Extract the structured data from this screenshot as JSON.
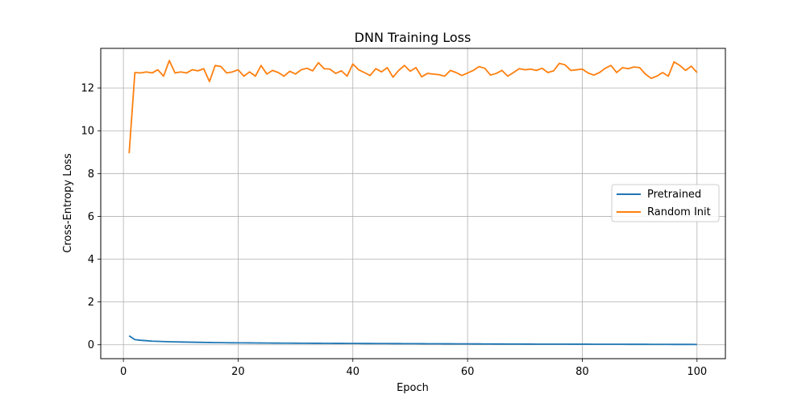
{
  "chart_data": {
    "type": "line",
    "title": "DNN Training Loss",
    "xlabel": "Epoch",
    "ylabel": "Cross-Entropy Loss",
    "xlim": [
      -3.95,
      104.95
    ],
    "ylim": [
      -0.65,
      13.85
    ],
    "xticks": [
      0,
      20,
      40,
      60,
      80,
      100
    ],
    "yticks": [
      0,
      2,
      4,
      6,
      8,
      10,
      12
    ],
    "grid": true,
    "legend_position": "center-right",
    "x": [
      1,
      2,
      3,
      4,
      5,
      6,
      7,
      8,
      9,
      10,
      11,
      12,
      13,
      14,
      15,
      16,
      17,
      18,
      19,
      20,
      21,
      22,
      23,
      24,
      25,
      26,
      27,
      28,
      29,
      30,
      31,
      32,
      33,
      34,
      35,
      36,
      37,
      38,
      39,
      40,
      41,
      42,
      43,
      44,
      45,
      46,
      47,
      48,
      49,
      50,
      51,
      52,
      53,
      54,
      55,
      56,
      57,
      58,
      59,
      60,
      61,
      62,
      63,
      64,
      65,
      66,
      67,
      68,
      69,
      70,
      71,
      72,
      73,
      74,
      75,
      76,
      77,
      78,
      79,
      80,
      81,
      82,
      83,
      84,
      85,
      86,
      87,
      88,
      89,
      90,
      91,
      92,
      93,
      94,
      95,
      96,
      97,
      98,
      99,
      100
    ],
    "series": [
      {
        "name": "Pretrained",
        "color": "#1f77b4",
        "values": [
          0.42,
          0.24,
          0.21,
          0.19,
          0.17,
          0.16,
          0.15,
          0.14,
          0.135,
          0.13,
          0.125,
          0.12,
          0.115,
          0.11,
          0.105,
          0.1,
          0.098,
          0.095,
          0.092,
          0.09,
          0.088,
          0.086,
          0.084,
          0.082,
          0.08,
          0.078,
          0.077,
          0.075,
          0.074,
          0.072,
          0.071,
          0.07,
          0.068,
          0.067,
          0.066,
          0.065,
          0.064,
          0.063,
          0.062,
          0.061,
          0.06,
          0.059,
          0.058,
          0.057,
          0.056,
          0.055,
          0.054,
          0.053,
          0.052,
          0.051,
          0.05,
          0.049,
          0.048,
          0.047,
          0.046,
          0.045,
          0.044,
          0.043,
          0.042,
          0.041,
          0.04,
          0.039,
          0.038,
          0.037,
          0.036,
          0.035,
          0.034,
          0.033,
          0.032,
          0.031,
          0.03,
          0.029,
          0.029,
          0.028,
          0.028,
          0.027,
          0.027,
          0.026,
          0.026,
          0.025,
          0.025,
          0.024,
          0.024,
          0.023,
          0.023,
          0.022,
          0.022,
          0.021,
          0.021,
          0.02,
          0.02,
          0.019,
          0.019,
          0.018,
          0.018,
          0.017,
          0.017,
          0.016,
          0.016,
          0.015
        ]
      },
      {
        "name": "Random Init",
        "color": "#ff7f0e",
        "values": [
          8.95,
          12.72,
          12.7,
          12.75,
          12.7,
          12.85,
          12.55,
          13.28,
          12.7,
          12.75,
          12.7,
          12.85,
          12.8,
          12.9,
          12.3,
          13.05,
          13.0,
          12.7,
          12.75,
          12.85,
          12.55,
          12.75,
          12.55,
          13.05,
          12.65,
          12.82,
          12.72,
          12.55,
          12.78,
          12.65,
          12.85,
          12.92,
          12.8,
          13.18,
          12.9,
          12.88,
          12.68,
          12.8,
          12.55,
          13.12,
          12.85,
          12.72,
          12.58,
          12.9,
          12.75,
          12.95,
          12.5,
          12.82,
          13.05,
          12.78,
          12.95,
          12.52,
          12.68,
          12.65,
          12.62,
          12.55,
          12.82,
          12.72,
          12.58,
          12.7,
          12.82,
          13.0,
          12.92,
          12.6,
          12.68,
          12.82,
          12.55,
          12.72,
          12.9,
          12.85,
          12.88,
          12.82,
          12.92,
          12.72,
          12.8,
          13.15,
          13.08,
          12.82,
          12.85,
          12.88,
          12.7,
          12.6,
          12.72,
          12.92,
          13.05,
          12.72,
          12.95,
          12.9,
          12.98,
          12.95,
          12.65,
          12.45,
          12.55,
          12.72,
          12.55,
          13.22,
          13.05,
          12.82,
          13.02,
          12.72
        ]
      }
    ]
  }
}
